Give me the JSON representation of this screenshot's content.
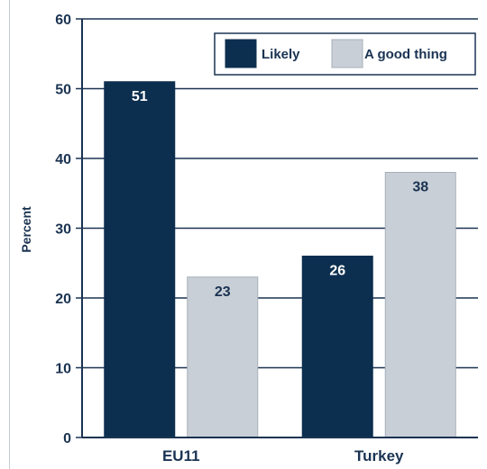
{
  "chart_data": {
    "type": "bar",
    "title": "",
    "xlabel": "",
    "ylabel": "Percent",
    "ylim": [
      0,
      60
    ],
    "yticks": [
      0,
      10,
      20,
      30,
      40,
      50,
      60
    ],
    "categories": [
      "EU11",
      "Turkey"
    ],
    "series": [
      {
        "name": "Likely",
        "values": [
          51,
          26
        ],
        "color": "#0c2f4f",
        "label_color": "#ffffff"
      },
      {
        "name": "A good thing",
        "values": [
          23,
          38
        ],
        "color": "#c9cfd6",
        "label_color": "#1a3352"
      }
    ],
    "grid": true,
    "legend_position": "top-right",
    "axis_color": "#1a3352"
  }
}
